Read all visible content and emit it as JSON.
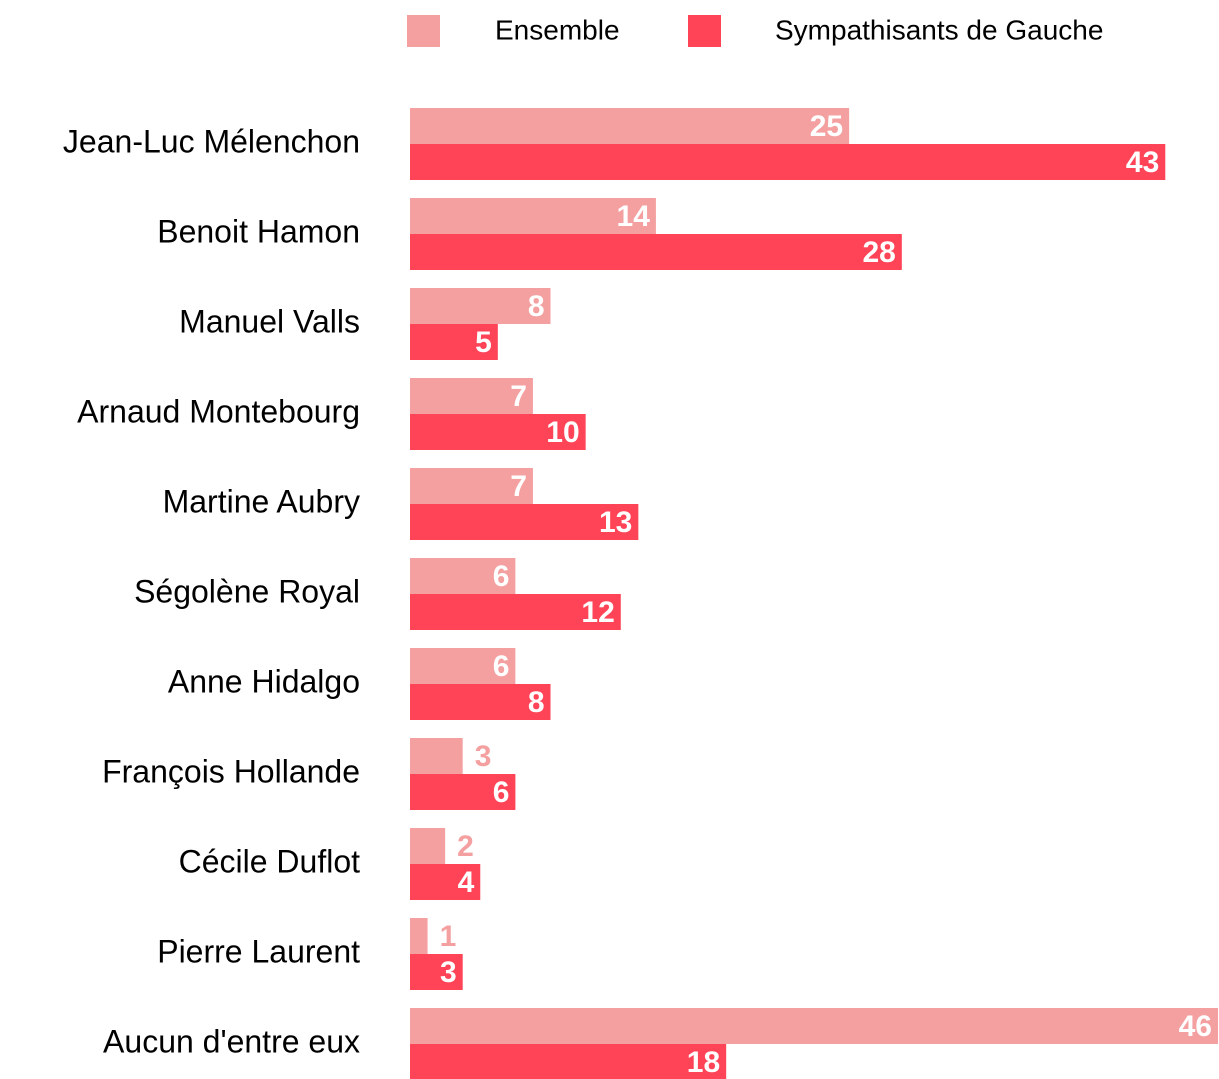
{
  "chart_data": {
    "type": "bar",
    "orientation": "horizontal",
    "categories": [
      "Jean-Luc Mélenchon",
      "Benoit Hamon",
      "Manuel Valls",
      "Arnaud Montebourg",
      "Martine Aubry",
      "Ségolène Royal",
      "Anne Hidalgo",
      "François Hollande",
      "Cécile Duflot",
      "Pierre Laurent",
      "Aucun d'entre eux"
    ],
    "series": [
      {
        "name": "Ensemble",
        "color": "#f4a0a0",
        "values": [
          25,
          14,
          8,
          7,
          7,
          6,
          6,
          3,
          2,
          1,
          46
        ]
      },
      {
        "name": "Sympathisants de Gauche",
        "color": "#ff4458",
        "values": [
          43,
          28,
          5,
          10,
          13,
          12,
          8,
          6,
          4,
          3,
          18
        ]
      }
    ],
    "legend": "top"
  }
}
